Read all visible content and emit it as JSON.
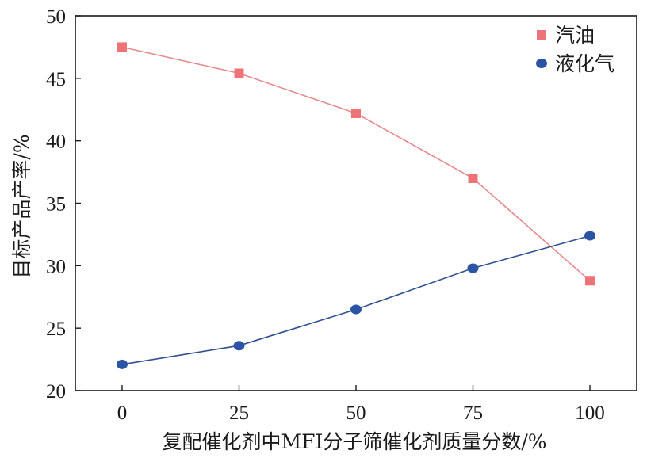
{
  "chart_data": {
    "type": "line",
    "x": [
      0,
      25,
      50,
      75,
      100
    ],
    "xlabel": "复配催化剂中MFI分子筛催化剂质量分数/%",
    "ylabel": "目标产品产率/%",
    "xlim": [
      -10,
      110
    ],
    "ylim": [
      20,
      50
    ],
    "xticks": [
      "0",
      "25",
      "50",
      "75",
      "100"
    ],
    "yticks": [
      "20",
      "25",
      "30",
      "35",
      "40",
      "45",
      "50"
    ],
    "grid": false,
    "legend_position": "top-right",
    "series": [
      {
        "name": "汽油",
        "marker": "square",
        "color": "#ee7378",
        "line_color": "#e88a8c",
        "values": [
          47.5,
          45.4,
          42.2,
          37.0,
          28.8
        ]
      },
      {
        "name": "液化气",
        "marker": "circle",
        "color": "#2b55a4",
        "line_color": "#2f4f8f",
        "values": [
          22.1,
          23.6,
          26.5,
          29.8,
          32.4
        ]
      }
    ]
  }
}
